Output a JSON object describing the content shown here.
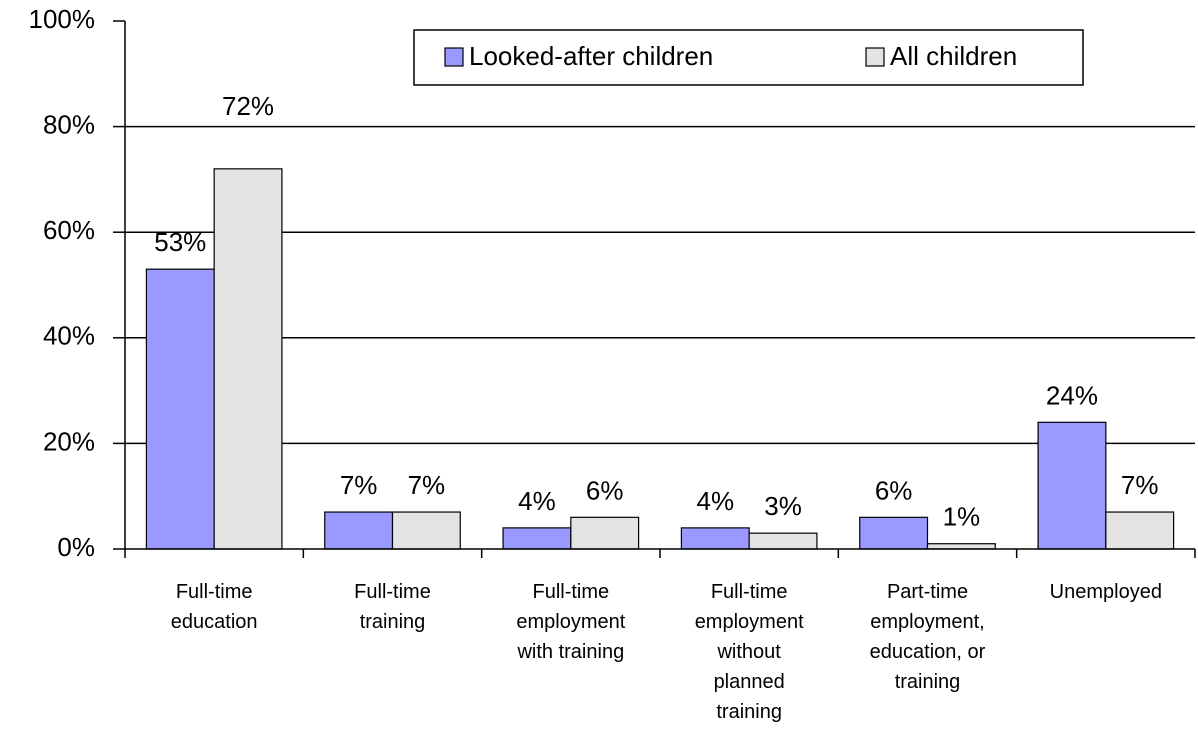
{
  "chart_data": {
    "type": "bar",
    "categories": [
      [
        "Full-time",
        "education"
      ],
      [
        "Full-time",
        "training"
      ],
      [
        "Full-time",
        "employment",
        "with training"
      ],
      [
        "Full-time",
        "employment",
        "without",
        "planned",
        "training"
      ],
      [
        "Part-time",
        "employment,",
        "education, or",
        "training"
      ],
      [
        "Unemployed"
      ]
    ],
    "series": [
      {
        "name": "Looked-after children",
        "color": "#9999ff",
        "values": [
          53,
          7,
          4,
          4,
          6,
          24
        ],
        "value_labels": [
          "53%",
          "7%",
          "4%",
          "4%",
          "6%",
          "24%"
        ]
      },
      {
        "name": "All children",
        "color": "#e3e3e3",
        "values": [
          72,
          7,
          6,
          3,
          1,
          7
        ],
        "value_labels": [
          "72%",
          "7%",
          "6%",
          "3%",
          "1%",
          "7%"
        ]
      }
    ],
    "ylim": [
      0,
      100
    ],
    "yticks": [
      {
        "value": 0,
        "label": "0%"
      },
      {
        "value": 20,
        "label": "20%"
      },
      {
        "value": 40,
        "label": "40%"
      },
      {
        "value": 60,
        "label": "60%"
      },
      {
        "value": 80,
        "label": "80%"
      },
      {
        "value": 100,
        "label": "100%"
      }
    ],
    "grid": true,
    "legend": "top-right"
  }
}
